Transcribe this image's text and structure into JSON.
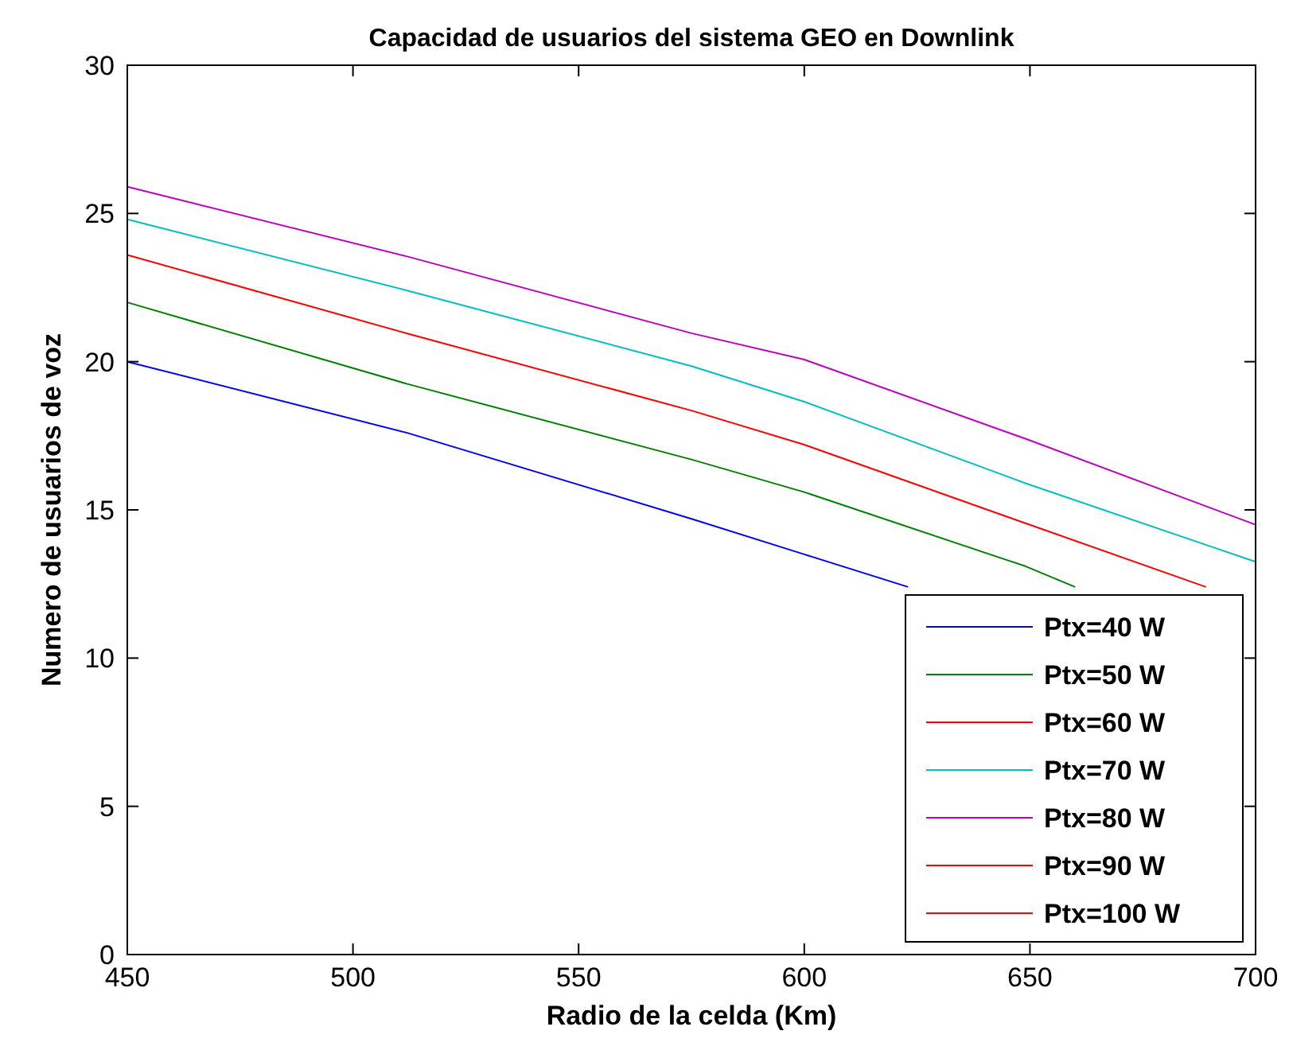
{
  "chart_data": {
    "type": "line",
    "title": "Capacidad de usuarios del sistema GEO en Downlink",
    "xlabel": "Radio de la celda (Km)",
    "ylabel": "Numero de usuarios de voz",
    "xlim": [
      450,
      700
    ],
    "ylim": [
      0,
      30
    ],
    "xticks": [
      450,
      500,
      550,
      600,
      650,
      700
    ],
    "yticks": [
      0,
      5,
      10,
      15,
      20,
      25,
      30
    ],
    "grid": false,
    "legend": "bottom right",
    "marker": "none",
    "line_style": "solid",
    "series": [
      {
        "name": "Ptx=40 W",
        "color": "#0000ff",
        "x": [
          450,
          512,
          575,
          600,
          623
        ],
        "values": [
          20,
          17.6,
          14.7,
          13.5,
          12.4
        ]
      },
      {
        "name": "Ptx=50 W",
        "color": "#008000",
        "x": [
          450,
          512,
          575,
          600,
          649,
          660
        ],
        "values": [
          22,
          19.25,
          16.7,
          15.6,
          13.1,
          12.4
        ]
      },
      {
        "name": "Ptx=60 W",
        "color": "#ff0000",
        "x": [
          450,
          512,
          575,
          600,
          649,
          689
        ],
        "values": [
          23.6,
          20.95,
          18.35,
          17.2,
          14.55,
          12.4
        ]
      },
      {
        "name": "Ptx=70 W",
        "color": "#00bfbf",
        "x": [
          450,
          512,
          575,
          600,
          649,
          700
        ],
        "values": [
          24.8,
          22.4,
          19.85,
          18.65,
          15.9,
          13.25
        ]
      },
      {
        "name": "Ptx=80 W",
        "color": "#bf00bf",
        "x": [
          450,
          512,
          575,
          600,
          649,
          700
        ],
        "values": [
          25.9,
          23.55,
          20.96,
          20.07,
          17.4,
          14.5
        ]
      },
      {
        "name": "Ptx=90 W",
        "color": "#ff0000"
      },
      {
        "name": "Ptx=100 W",
        "color": "#ff0000"
      }
    ]
  }
}
